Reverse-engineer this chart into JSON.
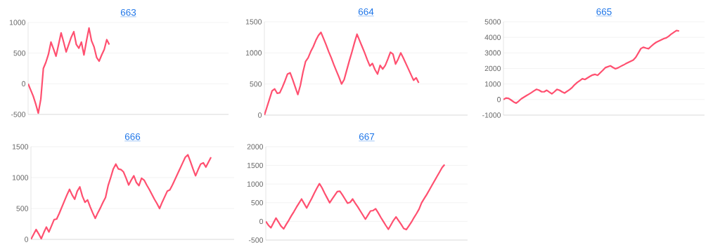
{
  "chart_data": [
    {
      "type": "line",
      "title": "663",
      "grid": "y",
      "tick_labels": "y",
      "ylim": [
        -500,
        1000
      ],
      "yticks": [
        -500,
        0,
        500,
        1000
      ],
      "categories": [
        null,
        null,
        null,
        null,
        null,
        null,
        null,
        null,
        null,
        null,
        null,
        null,
        null,
        null,
        null,
        null,
        null,
        null,
        null,
        null,
        null,
        null,
        null,
        null,
        null,
        null,
        null,
        null,
        null,
        null,
        null,
        null,
        null,
        null,
        null,
        null,
        null,
        null,
        null,
        null,
        null,
        null,
        null,
        null,
        null,
        null,
        null,
        null,
        null,
        null,
        null,
        null,
        null,
        null,
        null,
        null,
        null,
        null,
        null,
        null,
        null,
        null,
        null,
        null,
        null,
        null,
        null,
        null,
        null,
        null,
        null,
        null,
        null,
        null,
        null,
        null,
        null,
        null,
        null,
        null
      ],
      "series": [
        {
          "color": "#ff5070",
          "values": [
            0,
            -100,
            -200,
            -330,
            -480,
            -250,
            250,
            350,
            480,
            680,
            570,
            450,
            640,
            830,
            680,
            520,
            640,
            760,
            850,
            640,
            580,
            680,
            470,
            700,
            910,
            700,
            600,
            430,
            370,
            470,
            560,
            720,
            640,
            null,
            null,
            null,
            null,
            null,
            null,
            null,
            null,
            null,
            null,
            null,
            null,
            null,
            null,
            null,
            null,
            null,
            null,
            null,
            null,
            null,
            null,
            null,
            null,
            null,
            null,
            null,
            null,
            null,
            null,
            null,
            null,
            null,
            null,
            null,
            null,
            null,
            null,
            null,
            null,
            null,
            null,
            null,
            null,
            null,
            null,
            null
          ]
        }
      ]
    },
    {
      "type": "line",
      "title": "664",
      "grid": "y",
      "tick_labels": "y",
      "ylim": [
        0,
        1500
      ],
      "yticks": [
        0,
        500,
        1000,
        1500
      ],
      "categories": [
        null,
        null,
        null,
        null,
        null,
        null,
        null,
        null,
        null,
        null,
        null,
        null,
        null,
        null,
        null,
        null,
        null,
        null,
        null,
        null,
        null,
        null,
        null,
        null,
        null,
        null,
        null,
        null,
        null,
        null,
        null,
        null,
        null,
        null,
        null,
        null,
        null,
        null,
        null,
        null,
        null,
        null,
        null,
        null,
        null,
        null,
        null,
        null,
        null,
        null,
        null,
        null,
        null,
        null,
        null,
        null,
        null,
        null,
        null,
        null,
        null,
        null,
        null,
        null,
        null,
        null,
        null,
        null,
        null,
        null,
        null,
        null,
        null,
        null,
        null,
        null,
        null,
        null,
        null,
        null
      ],
      "series": [
        {
          "color": "#ff5070",
          "values": [
            0,
            130,
            260,
            390,
            420,
            350,
            360,
            450,
            550,
            660,
            680,
            570,
            450,
            330,
            480,
            690,
            860,
            920,
            1020,
            1100,
            1200,
            1280,
            1330,
            1230,
            1130,
            1020,
            920,
            810,
            710,
            610,
            500,
            570,
            720,
            870,
            1010,
            1160,
            1300,
            1200,
            1100,
            1000,
            890,
            790,
            830,
            730,
            660,
            800,
            740,
            800,
            900,
            1010,
            980,
            820,
            900,
            1000,
            920,
            830,
            740,
            650,
            560,
            600,
            520,
            null,
            null,
            null,
            null,
            null,
            null,
            null,
            null,
            null,
            null,
            null,
            null,
            null,
            null,
            null,
            null,
            null,
            null,
            null
          ]
        }
      ]
    },
    {
      "type": "line",
      "title": "665",
      "grid": "y",
      "tick_labels": "y",
      "ylim": [
        -1000,
        5000
      ],
      "yticks": [
        -1000,
        0,
        1000,
        2000,
        3000,
        4000,
        5000
      ],
      "categories": [
        null,
        null,
        null,
        null,
        null,
        null,
        null,
        null,
        null,
        null,
        null,
        null,
        null,
        null,
        null,
        null,
        null,
        null,
        null,
        null,
        null,
        null,
        null,
        null,
        null,
        null,
        null,
        null,
        null,
        null,
        null,
        null,
        null,
        null,
        null,
        null,
        null,
        null,
        null,
        null,
        null,
        null,
        null,
        null,
        null,
        null,
        null,
        null,
        null,
        null,
        null,
        null,
        null,
        null,
        null,
        null,
        null,
        null,
        null,
        null,
        null,
        null,
        null,
        null,
        null,
        null,
        null,
        null,
        null,
        null,
        null,
        null,
        null,
        null,
        null,
        null,
        null,
        null,
        null,
        null
      ],
      "series": [
        {
          "color": "#ff5070",
          "values": [
            0,
            100,
            80,
            -30,
            -150,
            -230,
            -100,
            50,
            150,
            250,
            350,
            450,
            560,
            660,
            600,
            500,
            500,
            600,
            480,
            370,
            500,
            650,
            600,
            500,
            420,
            530,
            640,
            780,
            960,
            1100,
            1220,
            1340,
            1290,
            1390,
            1490,
            1580,
            1620,
            1560,
            1720,
            1880,
            2050,
            2110,
            2170,
            2070,
            1980,
            2040,
            2130,
            2210,
            2300,
            2380,
            2460,
            2540,
            2720,
            3000,
            3280,
            3360,
            3310,
            3270,
            3420,
            3560,
            3680,
            3760,
            3840,
            3920,
            3970,
            4080,
            4220,
            4330,
            4440,
            4400,
            null,
            null,
            null,
            null,
            null,
            null,
            null,
            null,
            null,
            null
          ]
        }
      ]
    },
    {
      "type": "line",
      "title": "666",
      "grid": "y",
      "tick_labels": "y",
      "ylim": [
        0,
        1500
      ],
      "yticks": [
        0,
        500,
        1000,
        1500
      ],
      "categories": [
        null,
        null,
        null,
        null,
        null,
        null,
        null,
        null,
        null,
        null,
        null,
        null,
        null,
        null,
        null,
        null,
        null,
        null,
        null,
        null,
        null,
        null,
        null,
        null,
        null,
        null,
        null,
        null,
        null,
        null,
        null,
        null,
        null,
        null,
        null,
        null,
        null,
        null,
        null,
        null,
        null,
        null,
        null,
        null,
        null,
        null,
        null,
        null,
        null,
        null,
        null,
        null,
        null,
        null,
        null,
        null,
        null,
        null,
        null,
        null,
        null,
        null,
        null,
        null,
        null,
        null,
        null,
        null,
        null,
        null,
        null,
        null,
        null,
        null,
        null,
        null,
        null,
        null,
        null,
        null
      ],
      "series": [
        {
          "color": "#ff5070",
          "values": [
            0,
            80,
            160,
            90,
            10,
            110,
            200,
            120,
            220,
            320,
            330,
            420,
            520,
            620,
            720,
            810,
            720,
            650,
            780,
            850,
            700,
            600,
            640,
            530,
            430,
            340,
            430,
            510,
            600,
            680,
            870,
            1000,
            1140,
            1220,
            1140,
            1130,
            1090,
            990,
            880,
            960,
            1030,
            920,
            870,
            990,
            960,
            880,
            810,
            730,
            650,
            580,
            500,
            600,
            690,
            780,
            800,
            880,
            970,
            1060,
            1150,
            1240,
            1330,
            1370,
            1260,
            1140,
            1030,
            1130,
            1220,
            1240,
            1170,
            1250,
            1330,
            null,
            null,
            null,
            null,
            null,
            null,
            null,
            null,
            null
          ]
        }
      ]
    },
    {
      "type": "line",
      "title": "667",
      "grid": "y",
      "tick_labels": "y",
      "ylim": [
        -500,
        2000
      ],
      "yticks": [
        -500,
        0,
        500,
        1000,
        1500,
        2000
      ],
      "categories": [
        null,
        null,
        null,
        null,
        null,
        null,
        null,
        null,
        null,
        null,
        null,
        null,
        null,
        null,
        null,
        null,
        null,
        null,
        null,
        null,
        null,
        null,
        null,
        null,
        null,
        null,
        null,
        null,
        null,
        null,
        null,
        null,
        null,
        null,
        null,
        null,
        null,
        null,
        null,
        null,
        null,
        null,
        null,
        null,
        null,
        null,
        null,
        null,
        null,
        null,
        null,
        null,
        null,
        null,
        null,
        null,
        null,
        null,
        null,
        null,
        null,
        null,
        null,
        null,
        null,
        null,
        null,
        null,
        null,
        null,
        null,
        null,
        null,
        null,
        null,
        null,
        null,
        null,
        null,
        null
      ],
      "series": [
        {
          "color": "#ff5070",
          "values": [
            0,
            -100,
            -170,
            -40,
            90,
            -20,
            -130,
            -200,
            -80,
            30,
            150,
            260,
            380,
            490,
            600,
            480,
            360,
            490,
            620,
            760,
            890,
            1010,
            900,
            760,
            630,
            500,
            600,
            700,
            800,
            810,
            710,
            600,
            490,
            510,
            600,
            490,
            390,
            280,
            170,
            60,
            170,
            280,
            290,
            340,
            230,
            110,
            0,
            -110,
            -210,
            -90,
            30,
            120,
            20,
            -80,
            -190,
            -220,
            -120,
            -20,
            100,
            210,
            330,
            500,
            610,
            720,
            840,
            960,
            1080,
            1200,
            1320,
            1440,
            1520,
            null,
            null,
            null,
            null,
            null,
            null,
            null,
            null,
            null
          ]
        }
      ]
    }
  ]
}
